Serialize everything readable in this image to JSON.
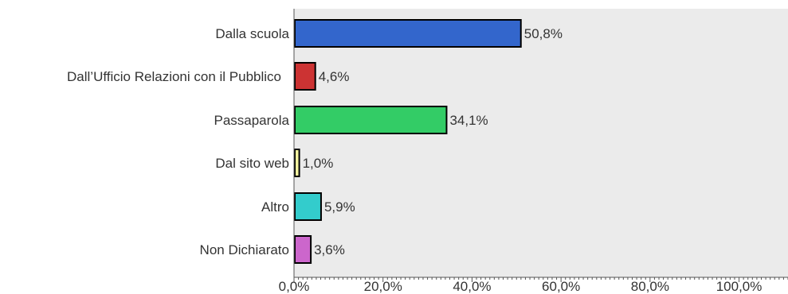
{
  "chart_data": {
    "type": "bar",
    "orientation": "horizontal",
    "title": "",
    "xlabel": "",
    "ylabel": "",
    "categories": [
      "Dalla scuola",
      "Dall’Ufficio Relazioni con il Pubblico",
      "Passaparola",
      "Dal sito web",
      "Altro",
      "Non Dichiarato"
    ],
    "values": [
      50.8,
      4.6,
      34.1,
      1.0,
      5.9,
      3.6
    ],
    "value_labels": [
      "50,8%",
      "4,6%",
      "34,1%",
      "1,0%",
      "5,9%",
      "3,6%"
    ],
    "colors": [
      "#3366cc",
      "#cc3333",
      "#33cc66",
      "#f7f7a0",
      "#33cccc",
      "#cc66cc"
    ],
    "xlim": [
      0,
      111
    ],
    "xticks": [
      0,
      20,
      40,
      60,
      80,
      100
    ],
    "xtick_labels": [
      "0,0%",
      "20,0%",
      "40,0%",
      "60,0%",
      "80,0%",
      "100,0%"
    ],
    "grid": false,
    "background": "#ebebeb"
  }
}
